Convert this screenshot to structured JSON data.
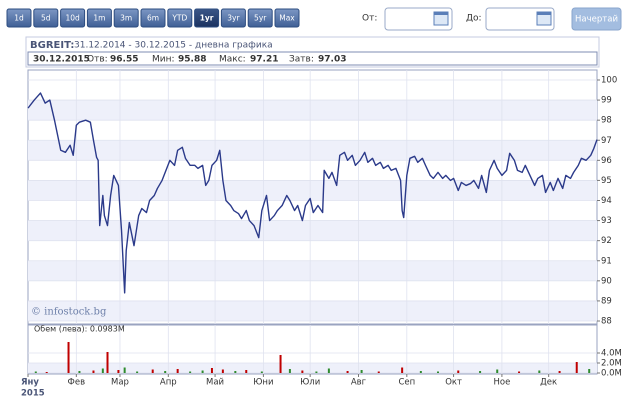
{
  "toolbar": {
    "ranges": [
      "1d",
      "5d",
      "10d",
      "1m",
      "3m",
      "6m",
      "YTD",
      "1yr",
      "3yr",
      "5yr",
      "Max"
    ],
    "selected": "1yr",
    "from_label": "От:",
    "to_label": "До:",
    "draw_button": "Начертай"
  },
  "chart_data": [
    {
      "type": "line",
      "title": "BGREIT:",
      "subtitle": "31.12.2014 - 30.12.2015 - дневна графика",
      "quote": {
        "date": "30.12.2015",
        "open_label": "Отв:",
        "open": 96.55,
        "low_label": "Мин:",
        "low": 95.88,
        "high_label": "Макс:",
        "high": 97.21,
        "close_label": "Затв:",
        "close": 97.03
      },
      "watermark": "© infostock.bg",
      "color": "#2b3a8a",
      "grid": true,
      "y_axis_side": "right",
      "xlim": [
        0,
        365
      ],
      "ylim": [
        88,
        100
      ],
      "yticks": [
        88,
        89,
        90,
        91,
        92,
        93,
        94,
        95,
        96,
        97,
        98,
        99,
        100
      ],
      "x": [
        0,
        4,
        8,
        11,
        14,
        17,
        21,
        24,
        27,
        29,
        31,
        33,
        37,
        40,
        42,
        44,
        45,
        46,
        48,
        49,
        51,
        53,
        55,
        58,
        60,
        62,
        63,
        65,
        68,
        71,
        73,
        76,
        78,
        81,
        83,
        86,
        89,
        91,
        94,
        96,
        99,
        101,
        104,
        107,
        109,
        112,
        114,
        116,
        118,
        121,
        123,
        125,
        127,
        130,
        132,
        135,
        137,
        140,
        142,
        145,
        148,
        150,
        153,
        155,
        158,
        160,
        163,
        166,
        168,
        171,
        173,
        176,
        178,
        181,
        183,
        186,
        189,
        190,
        193,
        195,
        198,
        200,
        203,
        205,
        208,
        210,
        213,
        216,
        218,
        221,
        223,
        226,
        228,
        231,
        233,
        236,
        239,
        240,
        241,
        243,
        245,
        248,
        250,
        253,
        255,
        258,
        260,
        263,
        266,
        268,
        271,
        273,
        276,
        278,
        281,
        284,
        286,
        289,
        291,
        294,
        296,
        299,
        301,
        304,
        307,
        309,
        312,
        314,
        317,
        319,
        322,
        325,
        327,
        330,
        332,
        335,
        337,
        340,
        343,
        345,
        348,
        350,
        353,
        355,
        358,
        361,
        363,
        365
      ],
      "values": [
        98.6,
        99.0,
        99.35,
        98.85,
        99.0,
        98.0,
        96.5,
        96.4,
        96.75,
        96.25,
        97.75,
        97.9,
        98.0,
        97.9,
        97.0,
        96.15,
        96.0,
        92.75,
        94.25,
        93.25,
        92.75,
        94.25,
        95.25,
        94.75,
        92.5,
        89.4,
        91.5,
        92.9,
        91.75,
        93.25,
        93.6,
        93.4,
        94.0,
        94.25,
        94.6,
        95.0,
        95.6,
        96.0,
        95.75,
        96.5,
        96.65,
        96.1,
        95.75,
        95.75,
        95.6,
        95.75,
        94.75,
        95.0,
        95.75,
        96.0,
        96.5,
        95.0,
        94.0,
        93.75,
        93.5,
        93.35,
        93.1,
        93.5,
        93.0,
        92.75,
        92.15,
        93.5,
        94.25,
        93.0,
        93.25,
        93.5,
        93.75,
        94.25,
        94.0,
        93.5,
        93.75,
        93.0,
        93.75,
        94.1,
        93.4,
        93.75,
        93.4,
        95.5,
        95.1,
        95.4,
        94.75,
        96.25,
        96.4,
        96.0,
        96.25,
        95.75,
        96.0,
        96.4,
        95.9,
        96.1,
        95.75,
        95.9,
        95.6,
        95.75,
        95.5,
        95.6,
        95.0,
        93.5,
        93.15,
        95.25,
        96.1,
        96.2,
        95.9,
        96.1,
        95.75,
        95.25,
        95.1,
        95.4,
        95.1,
        95.25,
        95.0,
        95.1,
        94.5,
        94.9,
        94.75,
        94.85,
        95.0,
        94.6,
        95.25,
        94.4,
        95.5,
        96.0,
        95.6,
        95.25,
        95.5,
        96.35,
        96.0,
        95.5,
        95.4,
        95.75,
        95.25,
        94.75,
        95.1,
        95.25,
        94.4,
        94.9,
        94.5,
        95.1,
        94.6,
        95.25,
        95.1,
        95.4,
        95.75,
        96.1,
        96.0,
        96.25,
        96.6,
        97.03
      ]
    },
    {
      "type": "bar",
      "title": "Обем (лева): 0.0983M",
      "grid": true,
      "y_axis_side": "right",
      "xlim": [
        0,
        365
      ],
      "ylim": [
        0,
        9600000
      ],
      "yticks": [
        {
          "value": 0,
          "label": "0.0M"
        },
        {
          "value": 2000000,
          "label": "2.0M"
        },
        {
          "value": 4000000,
          "label": "4.0M"
        }
      ],
      "xticks": [
        {
          "value": 0,
          "label": "Яну"
        },
        {
          "value": 31,
          "label": "Фев"
        },
        {
          "value": 59,
          "label": "Мар"
        },
        {
          "value": 90,
          "label": "Апр"
        },
        {
          "value": 120,
          "label": "Май"
        },
        {
          "value": 151,
          "label": "Юни"
        },
        {
          "value": 181,
          "label": "Юли"
        },
        {
          "value": 212,
          "label": "Авг"
        },
        {
          "value": 243,
          "label": "Сеп"
        },
        {
          "value": 273,
          "label": "Окт"
        },
        {
          "value": 304,
          "label": "Ное"
        },
        {
          "value": 334,
          "label": "Дек"
        }
      ],
      "x_year_label": "2015",
      "x": [
        5,
        12,
        26,
        33,
        42,
        48,
        51,
        58,
        62,
        70,
        80,
        88,
        96,
        104,
        112,
        118,
        125,
        133,
        140,
        150,
        162,
        168,
        176,
        185,
        193,
        205,
        214,
        225,
        240,
        252,
        263,
        276,
        290,
        301,
        315,
        328,
        341,
        352,
        360
      ],
      "values": [
        300000,
        200000,
        6200000,
        400000,
        500000,
        900000,
        4200000,
        600000,
        1100000,
        300000,
        700000,
        400000,
        800000,
        300000,
        500000,
        1000000,
        700000,
        400000,
        600000,
        300000,
        3600000,
        800000,
        500000,
        300000,
        900000,
        400000,
        600000,
        300000,
        1100000,
        400000,
        300000,
        500000,
        400000,
        700000,
        300000,
        500000,
        400000,
        2200000,
        800000
      ],
      "colors": [
        "#2e8b2e",
        "#c00000",
        "#c00000",
        "#2e8b2e",
        "#c00000",
        "#2e8b2e",
        "#c00000",
        "#c00000",
        "#2e8b2e",
        "#2e8b2e",
        "#c00000",
        "#2e8b2e",
        "#c00000",
        "#2e8b2e",
        "#2e8b2e",
        "#c00000",
        "#c00000",
        "#2e8b2e",
        "#c00000",
        "#2e8b2e",
        "#c00000",
        "#2e8b2e",
        "#c00000",
        "#2e8b2e",
        "#2e8b2e",
        "#c00000",
        "#2e8b2e",
        "#c00000",
        "#c00000",
        "#2e8b2e",
        "#2e8b2e",
        "#c00000",
        "#2e8b2e",
        "#2e8b2e",
        "#c00000",
        "#2e8b2e",
        "#c00000",
        "#c00000",
        "#2e8b2e"
      ]
    }
  ]
}
